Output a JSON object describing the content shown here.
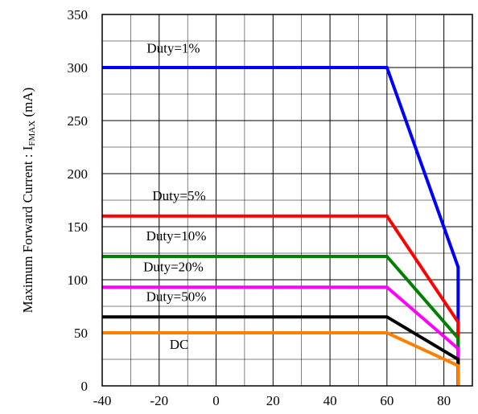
{
  "chart_data": {
    "type": "line",
    "title": "",
    "ylabel_main": "Maximum Forward Current :  I",
    "ylabel_sub": "FMAX",
    "ylabel_unit": " (mA)",
    "xlim": [
      -40,
      90
    ],
    "ylim": [
      0,
      350
    ],
    "xticks": [
      "-40",
      "-20",
      "0",
      "20",
      "40",
      "60",
      "80"
    ],
    "xtick_values": [
      -40,
      -20,
      0,
      20,
      40,
      60,
      80
    ],
    "yticks": [
      "0",
      "50",
      "100",
      "150",
      "200",
      "250",
      "300",
      "350"
    ],
    "ytick_values": [
      0,
      50,
      100,
      150,
      200,
      250,
      300,
      350
    ],
    "x_minor_step": 10,
    "y_minor_step": 25,
    "grid": true,
    "series": [
      {
        "name": "Duty=1%",
        "color": "#0000ff",
        "x": [
          -40,
          60,
          85,
          85
        ],
        "y": [
          300,
          300,
          112,
          0
        ],
        "label_x": -15,
        "label_y": 314
      },
      {
        "name": "Duty=5%",
        "color": "#ff0000",
        "x": [
          -40,
          60,
          85,
          85
        ],
        "y": [
          160,
          160,
          60,
          0
        ],
        "label_x": -13,
        "label_y": 175
      },
      {
        "name": "Duty=10%",
        "color": "#008000",
        "x": [
          -40,
          60,
          85,
          85
        ],
        "y": [
          122,
          122,
          45,
          0
        ],
        "label_x": -14,
        "label_y": 137
      },
      {
        "name": "Duty=20%",
        "color": "#ff00ff",
        "x": [
          -40,
          60,
          85,
          85
        ],
        "y": [
          93,
          93,
          35,
          0
        ],
        "label_x": -15,
        "label_y": 108
      },
      {
        "name": "Duty=50%",
        "color": "#000000",
        "x": [
          -40,
          60,
          85,
          85
        ],
        "y": [
          65,
          65,
          25,
          0
        ],
        "label_x": -14,
        "label_y": 80
      },
      {
        "name": "DC",
        "color": "#ff7f00",
        "x": [
          -40,
          60,
          85,
          85
        ],
        "y": [
          50,
          50,
          19,
          0
        ],
        "label_x": -13,
        "label_y": 35
      }
    ]
  }
}
